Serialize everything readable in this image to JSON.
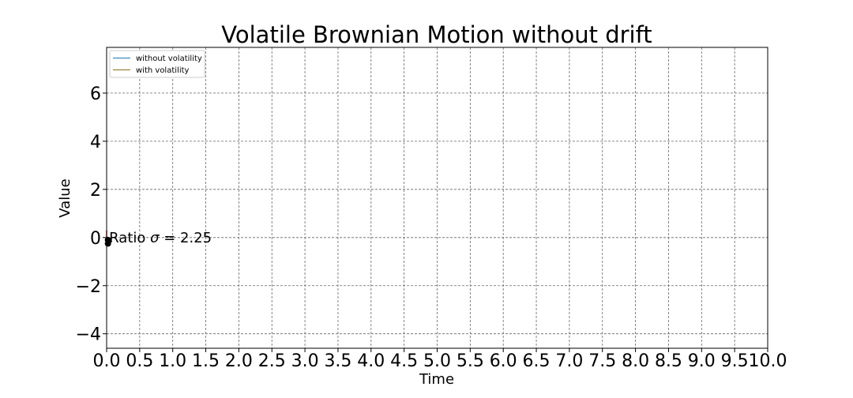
{
  "chart_data": {
    "type": "line",
    "title": "Volatile Brownian Motion without drift",
    "xlabel": "Time",
    "ylabel": "Value",
    "xlim": [
      0,
      10
    ],
    "ylim": [
      -4.6,
      7.9
    ],
    "x_ticks": [
      0.0,
      0.5,
      1.0,
      1.5,
      2.0,
      2.5,
      3.0,
      3.5,
      4.0,
      4.5,
      5.0,
      5.5,
      6.0,
      6.5,
      7.0,
      7.5,
      8.0,
      8.5,
      9.0,
      9.5,
      10.0
    ],
    "x_tick_labels": [
      "0.0",
      "0.5",
      "1.0",
      "1.5",
      "2.0",
      "2.5",
      "3.0",
      "3.5",
      "4.0",
      "4.5",
      "5.0",
      "5.5",
      "6.0",
      "6.5",
      "7.0",
      "7.5",
      "8.0",
      "8.5",
      "9.0",
      "9.5",
      "10.0"
    ],
    "y_ticks": [
      -4,
      -2,
      0,
      2,
      4,
      6
    ],
    "y_tick_labels": [
      "−4",
      "−2",
      "0",
      "2",
      "4",
      "6"
    ],
    "grid": true,
    "legend_position": "top-left",
    "series": [
      {
        "name": "without volatility",
        "color": "#1f77b4",
        "x": [
          0.0,
          0.02
        ],
        "y": [
          0.0,
          0.0
        ]
      },
      {
        "name": "with volatility",
        "color": "#8c6d1f",
        "x": [
          0.0,
          0.02
        ],
        "y": [
          0.0,
          0.0
        ]
      }
    ],
    "extra_marks": [
      {
        "kind": "vertical-segment",
        "color": "#d62728",
        "x": 0.0,
        "y": [
          -0.25,
          0.3
        ]
      },
      {
        "kind": "point",
        "color": "#000000",
        "x": 0.02,
        "y": -0.1
      },
      {
        "kind": "point",
        "color": "#000000",
        "x": 0.02,
        "y": -0.25
      }
    ],
    "annotation": {
      "prefix": "Ratio ",
      "symbol": "σ",
      "suffix": " =  2.25",
      "x": 0.05,
      "y": 0.0
    }
  }
}
